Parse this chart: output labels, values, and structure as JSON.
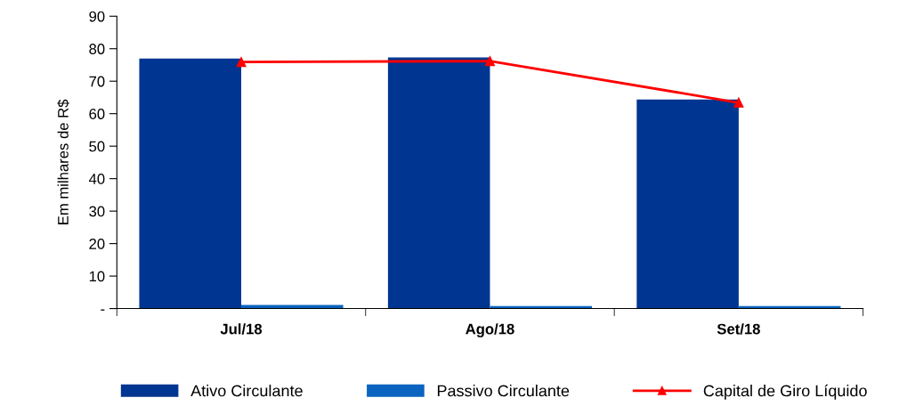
{
  "chart_data": {
    "type": "bar",
    "ylabel": "Em milhares de R$",
    "categories": [
      "Jul/18",
      "Ago/18",
      "Set/18"
    ],
    "series": [
      {
        "name": "Ativo Circulante",
        "color": "#003591",
        "values": [
          77.0,
          77.3,
          64.4
        ]
      },
      {
        "name": "Passivo Circulante",
        "color": "#0a64c0",
        "values": [
          1.1,
          0.8,
          0.8
        ]
      },
      {
        "name": "Capital de Giro Líquido",
        "color": "#ff0000",
        "type": "line",
        "values": [
          75.9,
          76.2,
          63.4
        ]
      }
    ],
    "ylim": [
      0,
      90
    ],
    "yticks": [
      {
        "value": 0,
        "label": "-"
      },
      10,
      20,
      30,
      40,
      50,
      60,
      70,
      80,
      90
    ],
    "legend": "bottom",
    "marker": "triangle",
    "grid": false
  }
}
